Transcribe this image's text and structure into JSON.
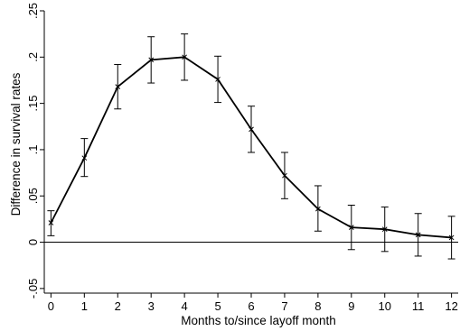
{
  "chart_data": {
    "type": "line",
    "xlabel": "Months to/since layoff month",
    "ylabel": "Difference in survival rates",
    "xlim": [
      -0.2,
      12.2
    ],
    "ylim": [
      -0.055,
      0.25
    ],
    "x_ticks": [
      0,
      1,
      2,
      3,
      4,
      5,
      6,
      7,
      8,
      9,
      10,
      11,
      12
    ],
    "y_ticks": [
      -0.05,
      0,
      0.05,
      0.1,
      0.15,
      0.2,
      0.25
    ],
    "y_tick_labels": [
      "-.05",
      "0",
      ".05",
      ".1",
      ".15",
      ".2",
      ".25"
    ],
    "reference_line_y": 0,
    "grid": false,
    "legend": "none",
    "series": [
      {
        "x": [
          0,
          1,
          2,
          3,
          4,
          5,
          6,
          7,
          8,
          9,
          10,
          11,
          12
        ],
        "y": [
          0.021,
          0.091,
          0.168,
          0.197,
          0.2,
          0.176,
          0.122,
          0.072,
          0.036,
          0.016,
          0.014,
          0.008,
          0.005
        ],
        "ci_low": [
          0.007,
          0.071,
          0.144,
          0.172,
          0.175,
          0.151,
          0.097,
          0.047,
          0.012,
          -0.008,
          -0.01,
          -0.015,
          -0.018
        ],
        "ci_high": [
          0.034,
          0.112,
          0.192,
          0.222,
          0.225,
          0.201,
          0.147,
          0.097,
          0.061,
          0.04,
          0.038,
          0.031,
          0.028
        ]
      }
    ]
  }
}
